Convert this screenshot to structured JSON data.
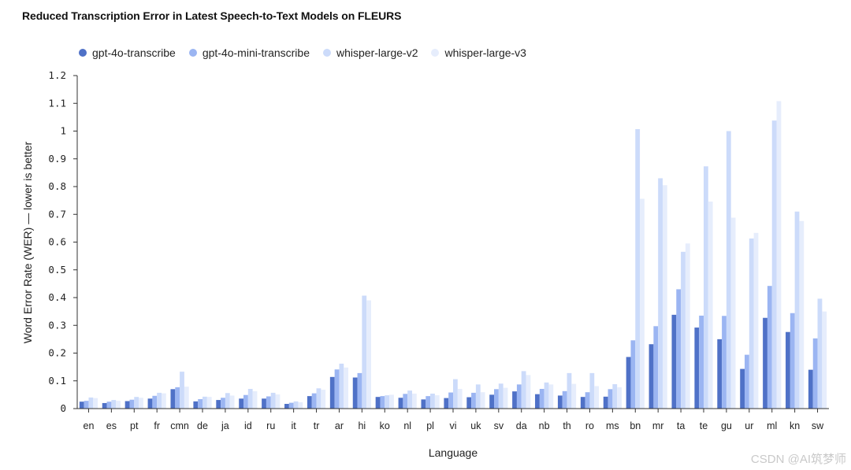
{
  "chart_data": {
    "type": "bar",
    "title": "Reduced Transcription Error in Latest Speech-to-Text Models on FLEURS",
    "xlabel": "Language",
    "ylabel": "Word Error Rate (WER) — lower is better",
    "ylim": [
      0,
      1.2
    ],
    "yticks": [
      "0",
      "0.1",
      "0.2",
      "0.3",
      "0.4",
      "0.5",
      "0.6",
      "0.7",
      "0.8",
      "0.9",
      "1",
      "1.1",
      "1.2"
    ],
    "grid": false,
    "legend_position": "top-left",
    "categories": [
      "en",
      "es",
      "pt",
      "fr",
      "cmn",
      "de",
      "ja",
      "id",
      "ru",
      "it",
      "tr",
      "ar",
      "hi",
      "ko",
      "nl",
      "pl",
      "vi",
      "uk",
      "sv",
      "da",
      "nb",
      "th",
      "ro",
      "ms",
      "bn",
      "mr",
      "ta",
      "te",
      "gu",
      "ur",
      "ml",
      "kn",
      "sw"
    ],
    "series": [
      {
        "name": "gpt-4o-transcribe",
        "color": "#4f71c7",
        "values": [
          0.025,
          0.02,
          0.027,
          0.036,
          0.07,
          0.026,
          0.031,
          0.036,
          0.036,
          0.017,
          0.045,
          0.114,
          0.112,
          0.042,
          0.039,
          0.033,
          0.038,
          0.041,
          0.05,
          0.062,
          0.052,
          0.047,
          0.042,
          0.043,
          0.186,
          0.232,
          0.338,
          0.292,
          0.25,
          0.143,
          0.327,
          0.276,
          0.14
        ]
      },
      {
        "name": "gpt-4o-mini-transcribe",
        "color": "#9bb5f2",
        "values": [
          0.028,
          0.025,
          0.032,
          0.046,
          0.077,
          0.034,
          0.039,
          0.049,
          0.044,
          0.021,
          0.055,
          0.141,
          0.128,
          0.045,
          0.053,
          0.045,
          0.058,
          0.057,
          0.07,
          0.087,
          0.071,
          0.063,
          0.059,
          0.07,
          0.246,
          0.297,
          0.43,
          0.335,
          0.334,
          0.194,
          0.442,
          0.344,
          0.253
        ]
      },
      {
        "name": "whisper-large-v2",
        "color": "#ccdbfa",
        "values": [
          0.04,
          0.031,
          0.042,
          0.057,
          0.133,
          0.043,
          0.056,
          0.071,
          0.057,
          0.026,
          0.073,
          0.162,
          0.407,
          0.048,
          0.065,
          0.054,
          0.106,
          0.087,
          0.09,
          0.135,
          0.094,
          0.128,
          0.128,
          0.088,
          1.007,
          0.83,
          0.565,
          0.873,
          1.0,
          0.613,
          1.038,
          0.71,
          0.396
        ]
      },
      {
        "name": "whisper-large-v3",
        "color": "#e6edfc",
        "values": [
          0.038,
          0.028,
          0.039,
          0.055,
          0.079,
          0.042,
          0.047,
          0.063,
          0.051,
          0.023,
          0.068,
          0.148,
          0.39,
          0.05,
          0.054,
          0.048,
          0.071,
          0.059,
          0.075,
          0.121,
          0.087,
          0.089,
          0.081,
          0.077,
          0.756,
          0.805,
          0.595,
          0.746,
          0.688,
          0.633,
          1.108,
          0.676,
          0.35
        ]
      }
    ]
  },
  "watermark": "CSDN @AI筑梦师"
}
